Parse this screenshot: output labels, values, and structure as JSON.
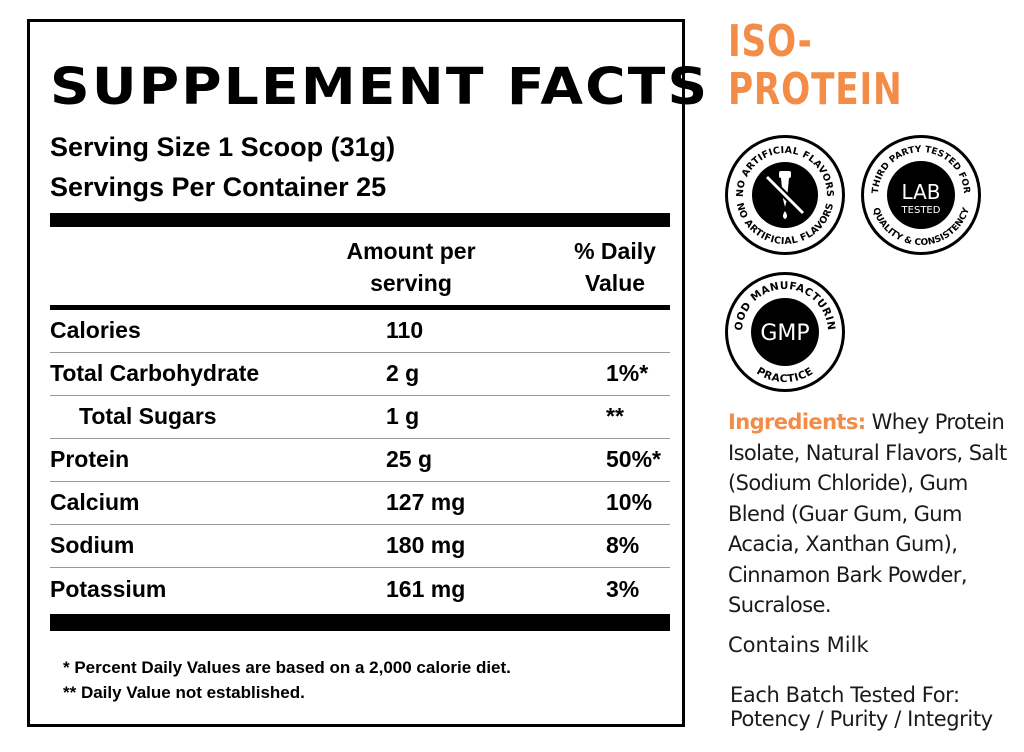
{
  "facts": {
    "title": "SUPPLEMENT FACTS",
    "serving_size": "Serving Size 1 Scoop (31g)",
    "servings_per_container": "Servings Per Container 25",
    "col_amount": [
      "Amount per",
      "serving"
    ],
    "col_dv": [
      "% Daily",
      "Value"
    ],
    "rows": [
      {
        "name": "Calories",
        "amount": "110",
        "dv": ""
      },
      {
        "name": "Total Carbohydrate",
        "amount": "2 g",
        "dv": "1%*"
      },
      {
        "name": "Total Sugars",
        "amount": "1 g",
        "dv": "**"
      },
      {
        "name": "Protein",
        "amount": "25 g",
        "dv": "50%*"
      },
      {
        "name": "Calcium",
        "amount": "127 mg",
        "dv": "10%"
      },
      {
        "name": "Sodium",
        "amount": "180 mg",
        "dv": "8%"
      },
      {
        "name": "Potassium",
        "amount": "161 mg",
        "dv": "3%"
      }
    ],
    "footnote_1": "* Percent Daily Values are based on a 2,000 calorie diet.",
    "footnote_2": "** Daily Value not established."
  },
  "brand": {
    "line1": "ISO-",
    "line2": "PROTEIN",
    "accent_color": "#f28c46"
  },
  "badges": {
    "no_artificial": {
      "icon": "no-artificial-flavors-icon",
      "ring_text": "NO ARTIFICIAL FLAVORS"
    },
    "lab_tested": {
      "icon": "lab-tested-icon",
      "ring_top": "THIRD PARTY TESTED FOR",
      "ring_bottom": "QUALITY & CONSISTENCY",
      "center_1": "LAB",
      "center_2": "TESTED"
    },
    "gmp": {
      "icon": "gmp-icon",
      "ring_top": "GOOD MANUFACTURING",
      "ring_bottom": "PRACTICE",
      "center": "GMP"
    }
  },
  "ingredients": {
    "label": "Ingredients:",
    "text": "Whey Protein Isolate, Natural Flavors, Salt (Sodium Chloride), Gum Blend (Guar Gum, Gum Acacia, Xanthan Gum), Cinnamon Bark Powder, Sucralose."
  },
  "contains": "Contains Milk",
  "batch": {
    "line1": "Each Batch Tested For:",
    "line2": "Potency / Purity / Integrity"
  }
}
